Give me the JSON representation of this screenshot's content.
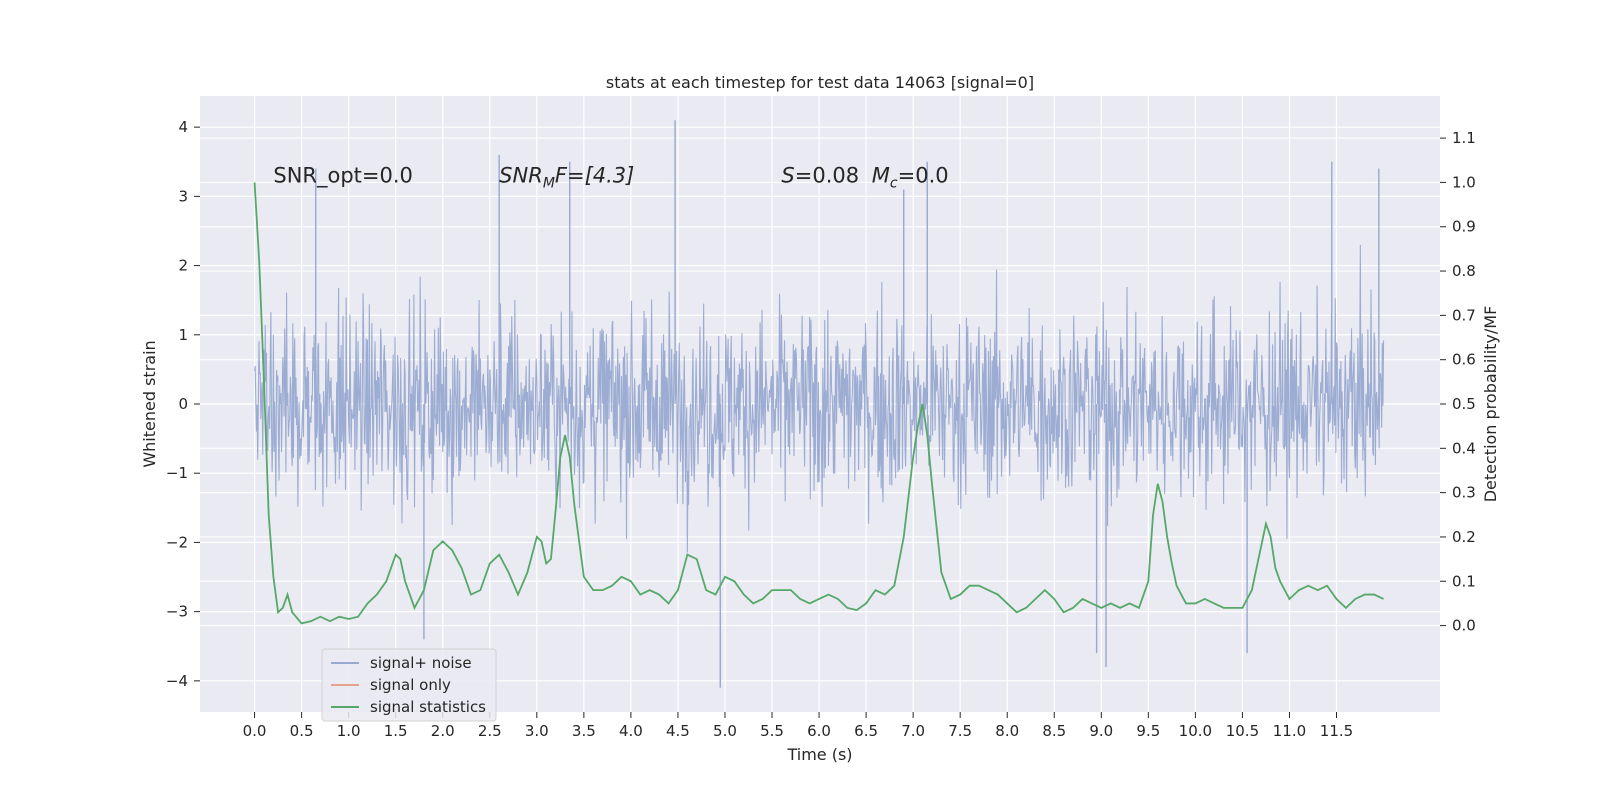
{
  "chart_data": {
    "type": "line",
    "title": "stats at each timestep for test data 14063 [signal=0]",
    "xlabel": "Time (s)",
    "ylabel": "Whitened strain",
    "y2label": "Detection probability/MF",
    "xlim": [
      -0.58,
      12.6
    ],
    "ylim": [
      -4.45,
      4.45
    ],
    "y2lim": [
      -0.195,
      1.195
    ],
    "xticks": [
      0.0,
      0.5,
      1.0,
      1.5,
      2.0,
      2.5,
      3.0,
      3.5,
      4.0,
      4.5,
      5.0,
      5.5,
      6.0,
      6.5,
      7.0,
      7.5,
      8.0,
      8.5,
      9.0,
      9.5,
      10.0,
      10.5,
      11.0,
      11.5
    ],
    "xtick_labels": [
      "0.0",
      "0.5",
      "1.0",
      "1.5",
      "2.0",
      "2.5",
      "3.0",
      "3.5",
      "4.0",
      "4.5",
      "5.0",
      "5.5",
      "6.0",
      "6.5",
      "7.0",
      "7.5",
      "8.0",
      "8.5",
      "9.0",
      "9.5",
      "10.0",
      "10.5",
      "11.0",
      "11.5"
    ],
    "yticks": [
      -4,
      -3,
      -2,
      -1,
      0,
      1,
      2,
      3,
      4
    ],
    "ytick_labels": [
      "−4",
      "−3",
      "−2",
      "−1",
      "0",
      "1",
      "2",
      "3",
      "4"
    ],
    "y2ticks": [
      0.0,
      0.1,
      0.2,
      0.3,
      0.4,
      0.5,
      0.6,
      0.7,
      0.8,
      0.9,
      1.0,
      1.1
    ],
    "y2tick_labels": [
      "0.0",
      "0.1",
      "0.2",
      "0.3",
      "0.4",
      "0.5",
      "0.6",
      "0.7",
      "0.8",
      "0.9",
      "1.0",
      "1.1"
    ],
    "grid": true,
    "legend_position": "lower-left",
    "annotations": [
      {
        "id": "snr-opt",
        "text": "SNR_opt=0.0",
        "x": 0.2,
        "y": 3.3
      },
      {
        "id": "snr-mf",
        "text": "SNR",
        "sub": "M",
        "rest": "F=[4.3]",
        "x": 2.6,
        "y": 3.3
      },
      {
        "id": "s-mc",
        "text": "S",
        "rest": "=0.08   ",
        "text2": "M",
        "sub2": "c",
        "rest2": "=0.0",
        "x": 5.6,
        "y": 3.3
      }
    ],
    "series": [
      {
        "name": "signal+ noise",
        "axis": "left",
        "color": "#98a9d0",
        "t_range": [
          0.0,
          12.0
        ],
        "envelope_notes": "dense noise trace, peaks mostly within ±2.6",
        "peaks_x": [
          0.65,
          1.8,
          2.6,
          3.35,
          4.47,
          4.95,
          6.9,
          7.15,
          8.95,
          9.05,
          10.55,
          11.45,
          11.95
        ],
        "peaks_y": [
          3.4,
          -3.4,
          3.6,
          3.5,
          4.1,
          -4.1,
          3.1,
          3.5,
          -3.6,
          -3.8,
          -3.6,
          3.5,
          3.4
        ]
      },
      {
        "name": "signal only",
        "axis": "left",
        "color": "#e6a38c",
        "x": [],
        "y": []
      },
      {
        "name": "signal statistics",
        "axis": "right",
        "color": "#55a868",
        "x": [
          0.0,
          0.05,
          0.1,
          0.15,
          0.2,
          0.25,
          0.3,
          0.35,
          0.4,
          0.5,
          0.6,
          0.7,
          0.8,
          0.9,
          1.0,
          1.1,
          1.2,
          1.3,
          1.4,
          1.5,
          1.55,
          1.6,
          1.7,
          1.8,
          1.9,
          2.0,
          2.1,
          2.2,
          2.3,
          2.4,
          2.5,
          2.6,
          2.7,
          2.8,
          2.9,
          3.0,
          3.05,
          3.1,
          3.15,
          3.2,
          3.25,
          3.3,
          3.35,
          3.4,
          3.5,
          3.6,
          3.7,
          3.8,
          3.9,
          4.0,
          4.1,
          4.2,
          4.3,
          4.4,
          4.5,
          4.6,
          4.7,
          4.8,
          4.9,
          5.0,
          5.1,
          5.2,
          5.3,
          5.4,
          5.5,
          5.6,
          5.7,
          5.8,
          5.9,
          6.0,
          6.1,
          6.2,
          6.3,
          6.4,
          6.5,
          6.6,
          6.7,
          6.8,
          6.9,
          7.0,
          7.05,
          7.1,
          7.15,
          7.2,
          7.3,
          7.4,
          7.5,
          7.6,
          7.7,
          7.8,
          7.9,
          8.0,
          8.1,
          8.2,
          8.3,
          8.4,
          8.5,
          8.6,
          8.7,
          8.8,
          8.9,
          9.0,
          9.1,
          9.2,
          9.3,
          9.4,
          9.5,
          9.55,
          9.6,
          9.65,
          9.7,
          9.75,
          9.8,
          9.9,
          10.0,
          10.1,
          10.2,
          10.3,
          10.4,
          10.5,
          10.6,
          10.7,
          10.75,
          10.8,
          10.85,
          10.9,
          11.0,
          11.1,
          11.2,
          11.3,
          11.4,
          11.5,
          11.6,
          11.7,
          11.8,
          11.9,
          12.0
        ],
        "y": [
          1.0,
          0.82,
          0.55,
          0.25,
          0.11,
          0.03,
          0.04,
          0.07,
          0.03,
          0.005,
          0.01,
          0.02,
          0.01,
          0.02,
          0.015,
          0.02,
          0.05,
          0.07,
          0.1,
          0.16,
          0.15,
          0.1,
          0.04,
          0.08,
          0.17,
          0.19,
          0.17,
          0.13,
          0.07,
          0.08,
          0.14,
          0.16,
          0.12,
          0.07,
          0.12,
          0.2,
          0.19,
          0.14,
          0.15,
          0.26,
          0.38,
          0.43,
          0.38,
          0.27,
          0.11,
          0.08,
          0.08,
          0.09,
          0.11,
          0.1,
          0.07,
          0.08,
          0.07,
          0.05,
          0.08,
          0.16,
          0.15,
          0.08,
          0.07,
          0.11,
          0.1,
          0.07,
          0.05,
          0.06,
          0.08,
          0.08,
          0.08,
          0.06,
          0.05,
          0.06,
          0.07,
          0.06,
          0.04,
          0.035,
          0.05,
          0.08,
          0.07,
          0.09,
          0.2,
          0.38,
          0.45,
          0.5,
          0.43,
          0.32,
          0.12,
          0.06,
          0.07,
          0.09,
          0.09,
          0.08,
          0.07,
          0.05,
          0.03,
          0.04,
          0.06,
          0.08,
          0.06,
          0.03,
          0.04,
          0.06,
          0.05,
          0.04,
          0.05,
          0.04,
          0.05,
          0.04,
          0.1,
          0.25,
          0.32,
          0.28,
          0.2,
          0.14,
          0.09,
          0.05,
          0.05,
          0.06,
          0.05,
          0.04,
          0.04,
          0.04,
          0.08,
          0.18,
          0.23,
          0.2,
          0.13,
          0.1,
          0.06,
          0.08,
          0.09,
          0.08,
          0.09,
          0.06,
          0.04,
          0.06,
          0.07,
          0.07,
          0.06
        ]
      }
    ]
  }
}
